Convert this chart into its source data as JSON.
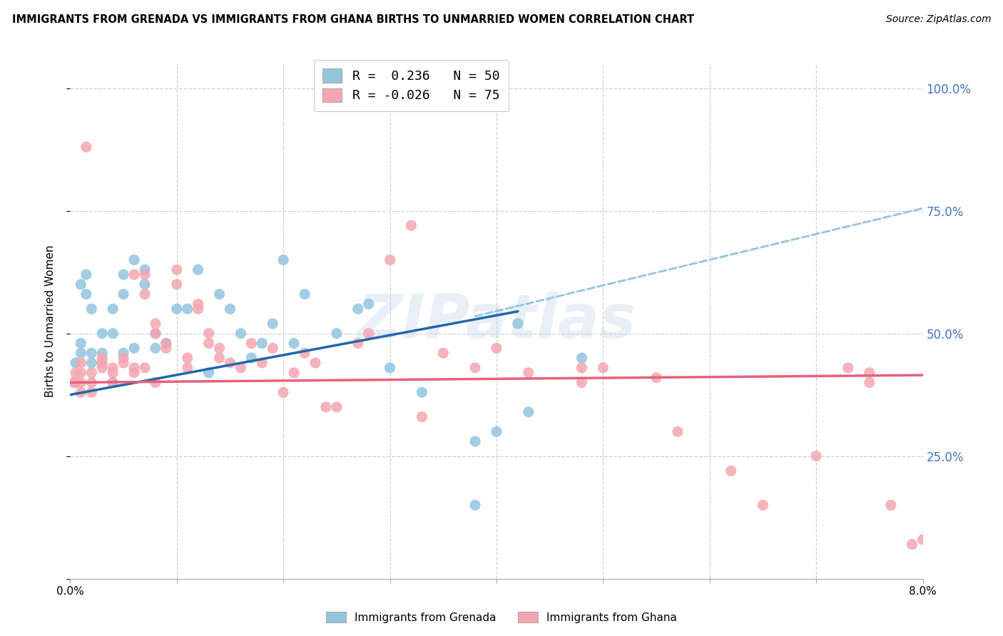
{
  "title": "IMMIGRANTS FROM GRENADA VS IMMIGRANTS FROM GHANA BIRTHS TO UNMARRIED WOMEN CORRELATION CHART",
  "source": "Source: ZipAtlas.com",
  "ylabel": "Births to Unmarried Women",
  "xlim": [
    0.0,
    0.08
  ],
  "ylim": [
    0.0,
    1.05
  ],
  "watermark": "ZIPatlas",
  "legend_r1_label": "R =  0.236   N = 50",
  "legend_r2_label": "R = -0.026   N = 75",
  "grenada_color": "#92c5de",
  "ghana_color": "#f4a6b0",
  "grenada_line_color": "#2166ac",
  "ghana_line_color": "#e8607a",
  "dashed_line_color": "#92c5de",
  "background_color": "#ffffff",
  "title_fontsize": 10.5,
  "axis_label_fontsize": 10,
  "tick_fontsize": 11,
  "source_fontsize": 10,
  "grenada_x": [
    0.0005,
    0.0005,
    0.001,
    0.001,
    0.001,
    0.0015,
    0.0015,
    0.002,
    0.002,
    0.002,
    0.003,
    0.003,
    0.003,
    0.004,
    0.004,
    0.004,
    0.005,
    0.005,
    0.005,
    0.006,
    0.006,
    0.007,
    0.007,
    0.008,
    0.008,
    0.009,
    0.01,
    0.011,
    0.012,
    0.013,
    0.014,
    0.015,
    0.016,
    0.017,
    0.018,
    0.019,
    0.02,
    0.021,
    0.022,
    0.025,
    0.027,
    0.028,
    0.03,
    0.033,
    0.038,
    0.04,
    0.043,
    0.048,
    0.038,
    0.042
  ],
  "grenada_y": [
    0.4,
    0.44,
    0.46,
    0.48,
    0.6,
    0.58,
    0.62,
    0.44,
    0.46,
    0.55,
    0.44,
    0.46,
    0.5,
    0.4,
    0.5,
    0.55,
    0.58,
    0.62,
    0.46,
    0.65,
    0.47,
    0.6,
    0.63,
    0.5,
    0.47,
    0.48,
    0.55,
    0.55,
    0.63,
    0.42,
    0.58,
    0.55,
    0.5,
    0.45,
    0.48,
    0.52,
    0.65,
    0.48,
    0.58,
    0.5,
    0.55,
    0.56,
    0.43,
    0.38,
    0.28,
    0.3,
    0.34,
    0.45,
    0.15,
    0.52
  ],
  "ghana_x": [
    0.0003,
    0.0005,
    0.0005,
    0.001,
    0.001,
    0.001,
    0.001,
    0.0015,
    0.002,
    0.002,
    0.002,
    0.003,
    0.003,
    0.003,
    0.003,
    0.004,
    0.004,
    0.004,
    0.005,
    0.005,
    0.006,
    0.006,
    0.006,
    0.007,
    0.007,
    0.007,
    0.008,
    0.008,
    0.008,
    0.009,
    0.009,
    0.01,
    0.01,
    0.011,
    0.011,
    0.012,
    0.012,
    0.013,
    0.013,
    0.014,
    0.014,
    0.015,
    0.016,
    0.017,
    0.018,
    0.019,
    0.02,
    0.021,
    0.022,
    0.023,
    0.024,
    0.025,
    0.027,
    0.028,
    0.03,
    0.032,
    0.033,
    0.035,
    0.038,
    0.04,
    0.043,
    0.048,
    0.048,
    0.05,
    0.055,
    0.057,
    0.062,
    0.065,
    0.07,
    0.073,
    0.075,
    0.075,
    0.077,
    0.079,
    0.08
  ],
  "ghana_y": [
    0.4,
    0.42,
    0.4,
    0.38,
    0.4,
    0.42,
    0.44,
    0.88,
    0.38,
    0.4,
    0.42,
    0.43,
    0.44,
    0.44,
    0.45,
    0.42,
    0.43,
    0.4,
    0.44,
    0.45,
    0.62,
    0.43,
    0.42,
    0.62,
    0.58,
    0.43,
    0.5,
    0.52,
    0.4,
    0.48,
    0.47,
    0.63,
    0.6,
    0.43,
    0.45,
    0.55,
    0.56,
    0.48,
    0.5,
    0.47,
    0.45,
    0.44,
    0.43,
    0.48,
    0.44,
    0.47,
    0.38,
    0.42,
    0.46,
    0.44,
    0.35,
    0.35,
    0.48,
    0.5,
    0.65,
    0.72,
    0.33,
    0.46,
    0.43,
    0.47,
    0.42,
    0.4,
    0.43,
    0.43,
    0.41,
    0.3,
    0.22,
    0.15,
    0.25,
    0.43,
    0.4,
    0.42,
    0.15,
    0.07,
    0.08
  ],
  "blue_line_x0": 0.0,
  "blue_line_y0": 0.375,
  "blue_line_x1": 0.042,
  "blue_line_y1": 0.545,
  "dashed_line_x0": 0.038,
  "dashed_line_y0": 0.535,
  "dashed_line_x1": 0.08,
  "dashed_line_y1": 0.755,
  "pink_line_x0": 0.0,
  "pink_line_y0": 0.4,
  "pink_line_x1": 0.08,
  "pink_line_y1": 0.415
}
